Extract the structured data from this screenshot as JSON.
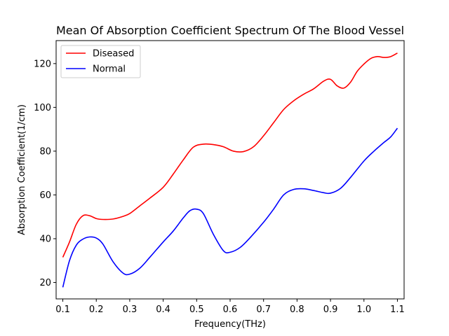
{
  "chart_data": {
    "type": "line",
    "title": "Mean Of Absorption Coefficient Spectrum Of The Blood Vessel",
    "xlabel": "Frequency(THz)",
    "ylabel": "Absorption Coefficient(1/cm)",
    "xlim": [
      0.08,
      1.12
    ],
    "ylim": [
      12.5,
      130.5
    ],
    "xticks": [
      0.1,
      0.2,
      0.3,
      0.4,
      0.5,
      0.6,
      0.7,
      0.8,
      0.9,
      1.0,
      1.1
    ],
    "xtick_labels": [
      "0.1",
      "0.2",
      "0.3",
      "0.4",
      "0.5",
      "0.6",
      "0.7",
      "0.8",
      "0.9",
      "1.0",
      "1.1"
    ],
    "yticks": [
      20,
      40,
      60,
      80,
      100,
      120
    ],
    "ytick_labels": [
      "20",
      "40",
      "60",
      "80",
      "100",
      "120"
    ],
    "grid": false,
    "legend_position": "top-left",
    "series": [
      {
        "name": "Diseased",
        "color": "#ff0000",
        "x": [
          0.1,
          0.12,
          0.14,
          0.16,
          0.18,
          0.2,
          0.22,
          0.25,
          0.28,
          0.3,
          0.33,
          0.36,
          0.4,
          0.43,
          0.46,
          0.49,
          0.52,
          0.55,
          0.58,
          0.61,
          0.64,
          0.67,
          0.7,
          0.73,
          0.76,
          0.79,
          0.82,
          0.85,
          0.88,
          0.9,
          0.92,
          0.94,
          0.96,
          0.98,
          1.0,
          1.02,
          1.04,
          1.06,
          1.08,
          1.1
        ],
        "y": [
          31.5,
          38.5,
          46.5,
          50.5,
          50.5,
          49.2,
          48.8,
          49.0,
          50.2,
          51.5,
          55.0,
          58.5,
          63.5,
          69.5,
          76.0,
          81.8,
          83.2,
          83.0,
          82.0,
          80.0,
          79.8,
          82.0,
          87.0,
          93.0,
          99.0,
          103.0,
          106.0,
          108.5,
          112.0,
          112.8,
          109.8,
          108.8,
          111.5,
          116.5,
          119.8,
          122.3,
          123.2,
          122.8,
          123.2,
          124.8
        ]
      },
      {
        "name": "Normal",
        "color": "#0000ff",
        "x": [
          0.1,
          0.12,
          0.14,
          0.16,
          0.18,
          0.2,
          0.22,
          0.25,
          0.28,
          0.3,
          0.33,
          0.36,
          0.4,
          0.43,
          0.46,
          0.48,
          0.5,
          0.52,
          0.55,
          0.58,
          0.6,
          0.63,
          0.66,
          0.7,
          0.73,
          0.76,
          0.79,
          0.82,
          0.85,
          0.88,
          0.9,
          0.93,
          0.96,
          1.0,
          1.03,
          1.06,
          1.08,
          1.1
        ],
        "y": [
          17.8,
          30.0,
          37.0,
          39.8,
          40.8,
          40.3,
          37.5,
          29.5,
          24.3,
          23.8,
          26.5,
          31.5,
          38.5,
          43.5,
          49.5,
          52.8,
          53.5,
          51.5,
          42.0,
          34.5,
          33.8,
          36.0,
          40.5,
          47.5,
          53.5,
          60.0,
          62.5,
          62.8,
          62.0,
          61.0,
          60.8,
          63.0,
          68.0,
          75.5,
          80.0,
          84.0,
          86.5,
          90.5
        ]
      }
    ]
  }
}
